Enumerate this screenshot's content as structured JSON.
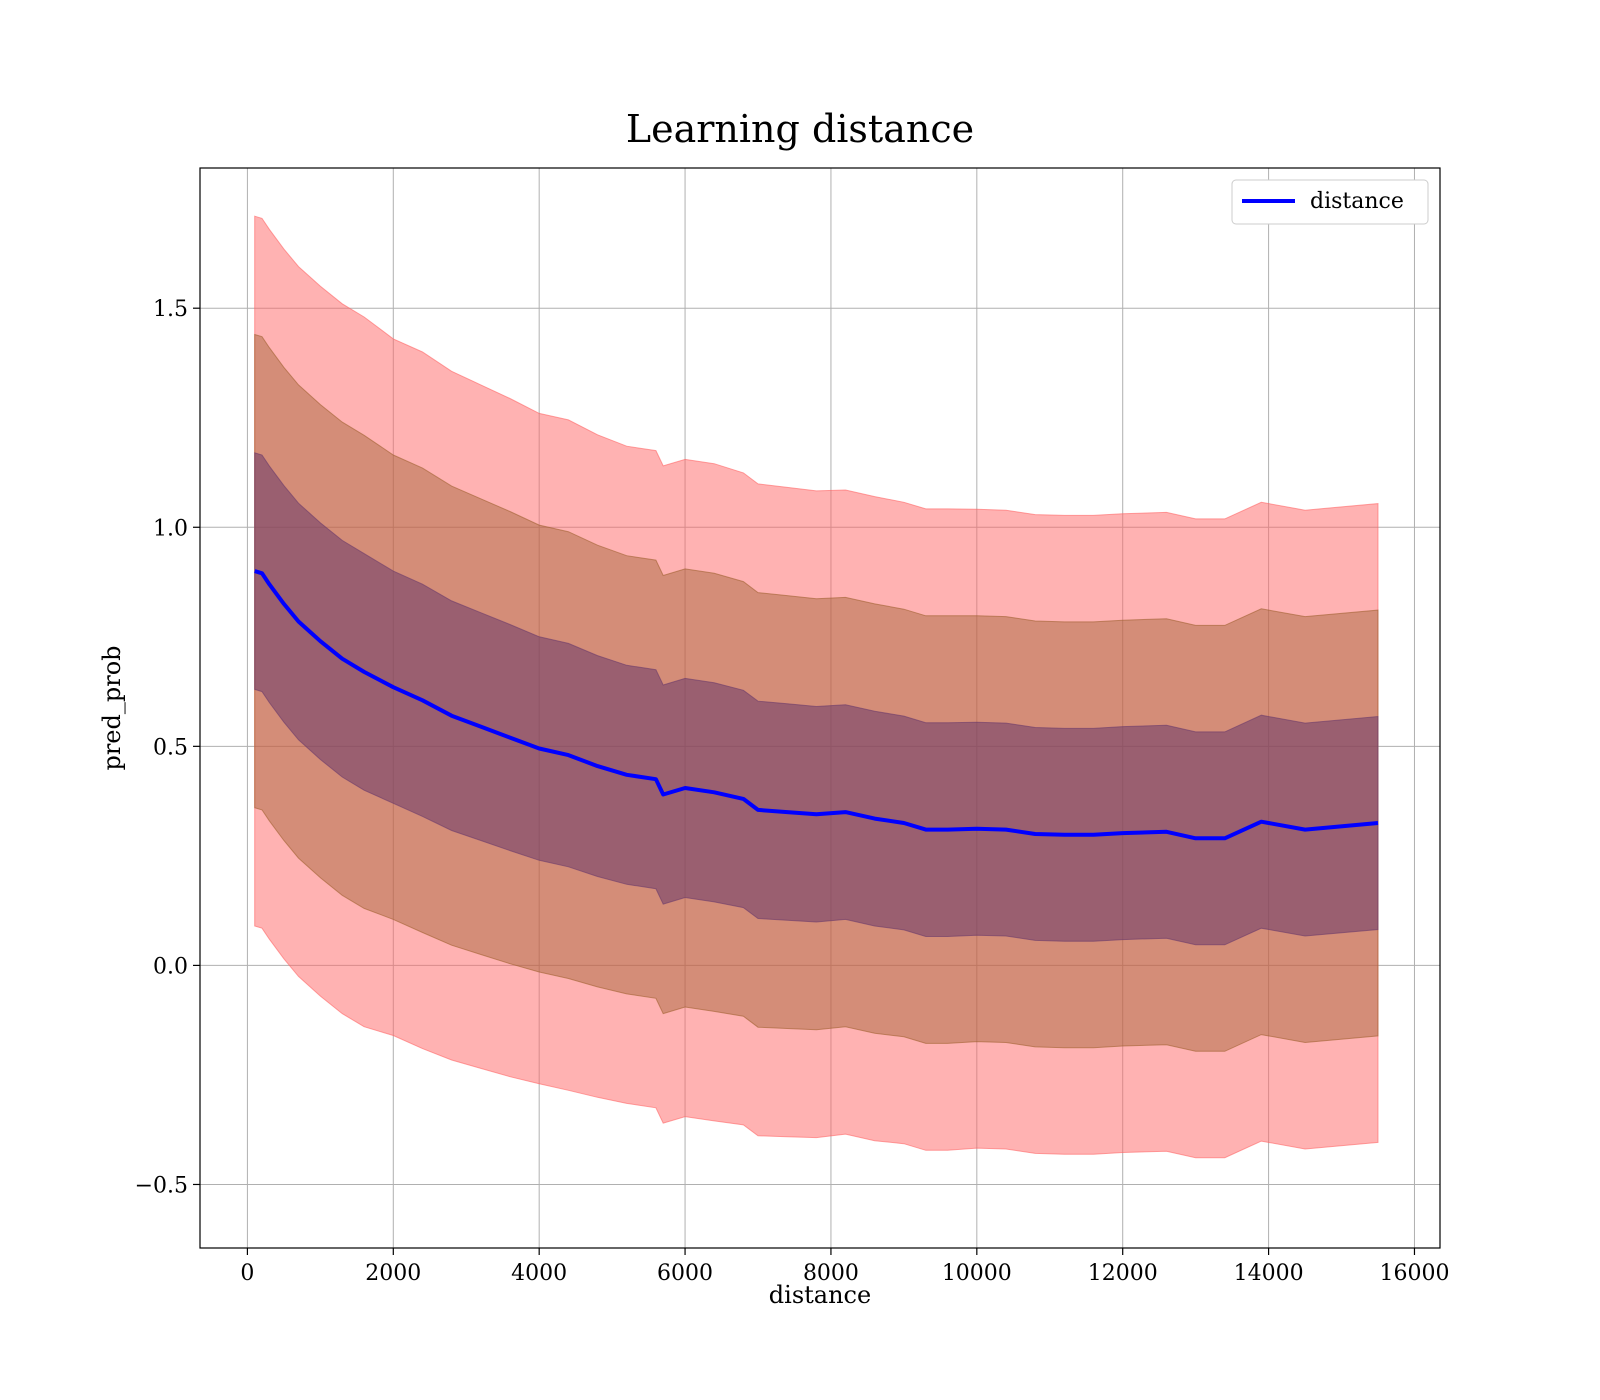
{
  "chart_data": {
    "type": "line",
    "title": "Learning distance",
    "xlabel": "distance",
    "ylabel": "pred_prob",
    "xlim": [
      -650,
      16350
    ],
    "ylim": [
      -0.645,
      1.82
    ],
    "xticks": [
      0,
      2000,
      4000,
      6000,
      8000,
      10000,
      12000,
      14000,
      16000
    ],
    "xtick_labels": [
      "0",
      "2000",
      "4000",
      "6000",
      "8000",
      "10000",
      "12000",
      "14000",
      "16000"
    ],
    "yticks": [
      -0.5,
      0.0,
      0.5,
      1.0,
      1.5
    ],
    "ytick_labels": [
      "−0.5",
      "0.0",
      "0.5",
      "1.0",
      "1.5"
    ],
    "grid": true,
    "legend": {
      "position": "top-right",
      "entries": [
        "distance"
      ]
    },
    "colors": {
      "line": "#0000ff",
      "band3": "#ff6666",
      "band2": "#a06030",
      "band1": "#6a3a6a",
      "grid": "#b0b0b0"
    },
    "series": [
      {
        "name": "distance",
        "x": [
          100,
          200,
          300,
          500,
          700,
          1000,
          1300,
          1600,
          2000,
          2400,
          2800,
          3200,
          3600,
          4000,
          4400,
          4800,
          5200,
          5600,
          5700,
          6000,
          6400,
          6800,
          7000,
          7400,
          7800,
          8200,
          8600,
          9000,
          9300,
          9600,
          10000,
          10400,
          10800,
          11200,
          11600,
          12000,
          12600,
          13000,
          13400,
          13900,
          14500,
          15500
        ],
        "y": [
          0.9,
          0.895,
          0.87,
          0.825,
          0.785,
          0.74,
          0.7,
          0.67,
          0.635,
          0.605,
          0.57,
          0.545,
          0.52,
          0.495,
          0.48,
          0.455,
          0.435,
          0.425,
          0.39,
          0.405,
          0.395,
          0.38,
          0.355,
          0.35,
          0.345,
          0.35,
          0.335,
          0.325,
          0.31,
          0.31,
          0.312,
          0.31,
          0.3,
          0.298,
          0.298,
          0.302,
          0.305,
          0.29,
          0.29,
          0.328,
          0.31,
          0.325
        ],
        "std": [
          0.27,
          0.27,
          0.27,
          0.27,
          0.27,
          0.27,
          0.27,
          0.27,
          0.265,
          0.265,
          0.262,
          0.26,
          0.258,
          0.255,
          0.255,
          0.252,
          0.25,
          0.25,
          0.25,
          0.25,
          0.25,
          0.248,
          0.248,
          0.247,
          0.246,
          0.245,
          0.245,
          0.244,
          0.244,
          0.244,
          0.243,
          0.243,
          0.243,
          0.243,
          0.243,
          0.243,
          0.243,
          0.243,
          0.243,
          0.243,
          0.243,
          0.243
        ]
      }
    ]
  }
}
